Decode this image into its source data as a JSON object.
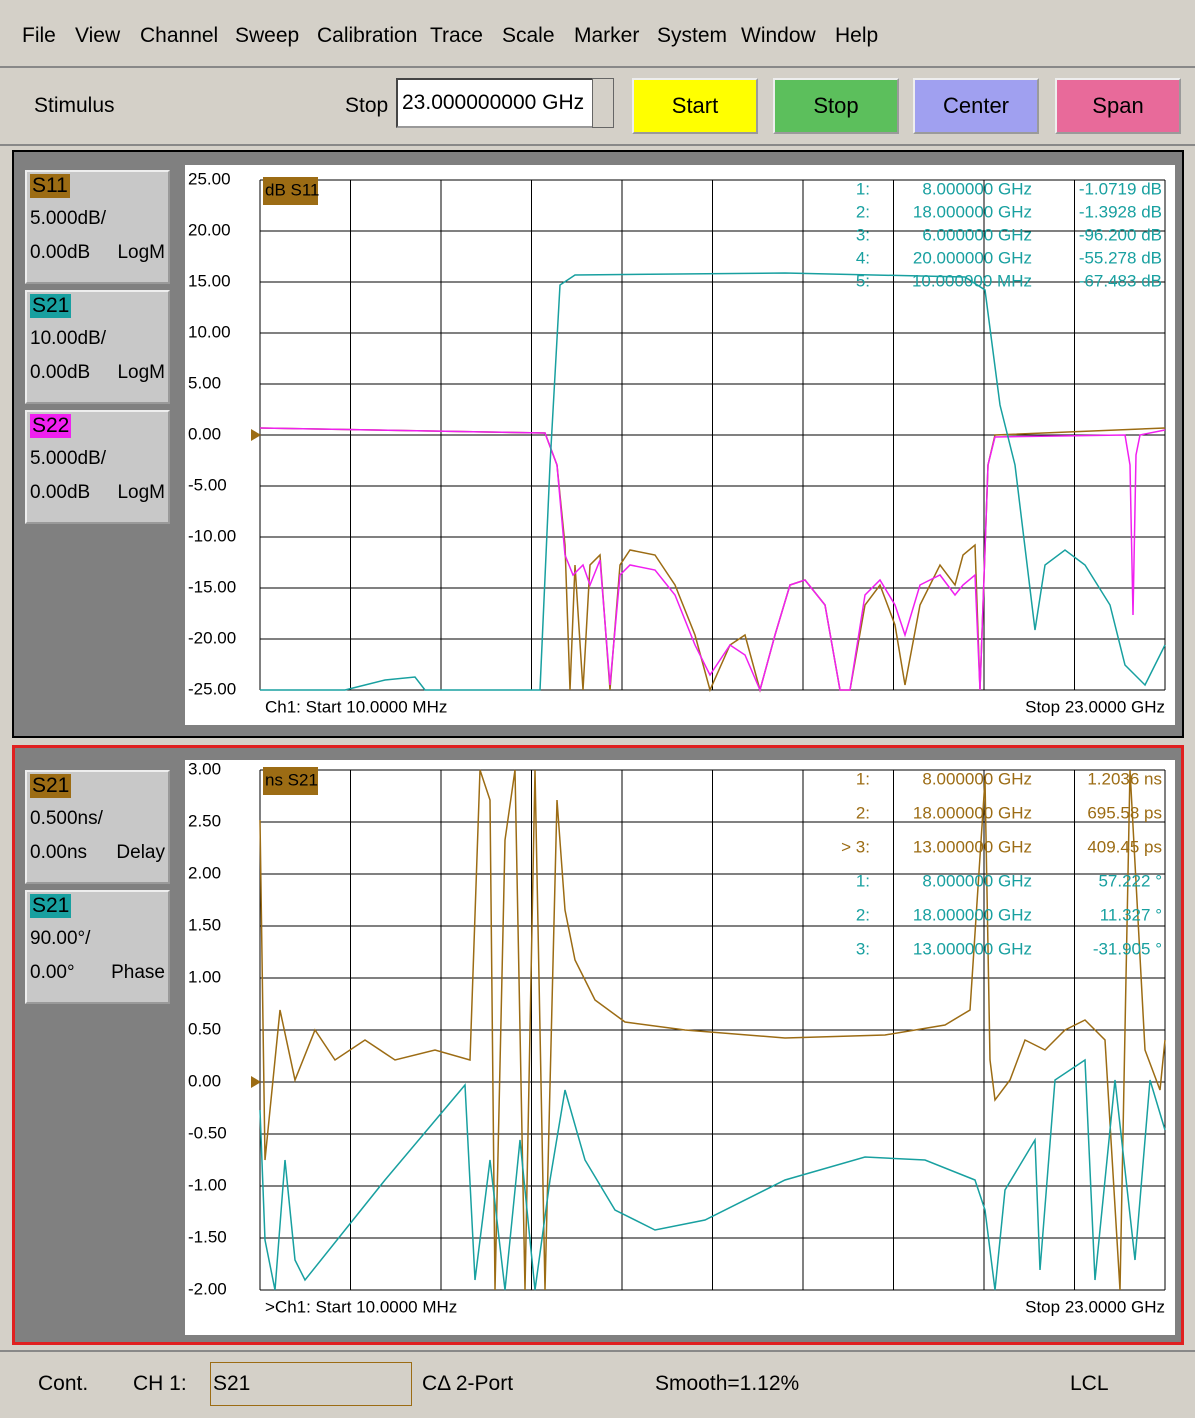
{
  "menu": [
    "File",
    "View",
    "Channel",
    "Sweep",
    "Calibration",
    "Trace",
    "Scale",
    "Marker",
    "System",
    "Window",
    "Help"
  ],
  "toolbar": {
    "group": "Stimulus",
    "field_label": "Stop",
    "field_value": "23.000000000 GHz",
    "buttons": [
      {
        "label": "Start",
        "color": "#ffff00"
      },
      {
        "label": "Stop",
        "color": "#5cbf5c"
      },
      {
        "label": "Center",
        "color": "#a0a0f0"
      },
      {
        "label": "Span",
        "color": "#e86a9a"
      }
    ]
  },
  "panels": [
    {
      "traces": [
        {
          "name": "S11",
          "color": "#9c6c14",
          "scale": "5.000dB/",
          "reference": "0.00dB",
          "format": "LogM"
        },
        {
          "name": "S21",
          "color": "#18a0a0",
          "scale": "10.00dB/",
          "reference": "0.00dB",
          "format": "LogM"
        },
        {
          "name": "S22",
          "color": "#f020f0",
          "scale": "5.000dB/",
          "reference": "0.00dB",
          "format": "LogM"
        }
      ],
      "tag": "dB S11",
      "tag_color": "#9c6c14",
      "yticks": [
        "25.00",
        "20.00",
        "15.00",
        "10.00",
        "5.00",
        "0.00",
        "-5.00",
        "-10.00",
        "-15.00",
        "-20.00",
        "-25.00"
      ],
      "markers": [
        {
          "id": "1:",
          "stimulus": "8.000000 GHz",
          "response": "-1.0719 dB",
          "color": "#18a0a0"
        },
        {
          "id": "2:",
          "stimulus": "18.000000 GHz",
          "response": "-1.3928 dB",
          "color": "#18a0a0"
        },
        {
          "id": "3:",
          "stimulus": "6.000000 GHz",
          "response": "-96.200 dB",
          "color": "#18a0a0"
        },
        {
          "id": "4:",
          "stimulus": "20.000000 GHz",
          "response": "-55.278 dB",
          "color": "#18a0a0"
        },
        {
          "id": "5:",
          "stimulus": "10.000000 MHz",
          "response": "-67.483 dB",
          "color": "#18a0a0"
        }
      ],
      "start": "Ch1: Start  10.0000 MHz",
      "stop": "Stop  23.0000 GHz"
    },
    {
      "traces": [
        {
          "name": "S21",
          "color": "#9c6c14",
          "scale": "0.500ns/",
          "reference": "0.00ns",
          "format": "Delay"
        },
        {
          "name": "S21",
          "color": "#18a0a0",
          "scale": "90.00°/",
          "reference": "0.00°",
          "format": "Phase"
        }
      ],
      "tag": "ns S21",
      "tag_color": "#9c6c14",
      "yticks": [
        "3.00",
        "2.50",
        "2.00",
        "1.50",
        "1.00",
        "0.50",
        "0.00",
        "-0.50",
        "-1.00",
        "-1.50",
        "-2.00"
      ],
      "markers": [
        {
          "id": "1:",
          "stimulus": "8.000000 GHz",
          "response": "1.2036 ns",
          "color": "#9c6c14"
        },
        {
          "id": "2:",
          "stimulus": "18.000000 GHz",
          "response": "695.58 ps",
          "color": "#9c6c14"
        },
        {
          "id": "> 3:",
          "stimulus": "13.000000 GHz",
          "response": "409.45 ps",
          "color": "#9c6c14"
        },
        {
          "id": "1:",
          "stimulus": "8.000000 GHz",
          "response": "57.222 °",
          "color": "#18a0a0"
        },
        {
          "id": "2:",
          "stimulus": "18.000000 GHz",
          "response": "11.327 °",
          "color": "#18a0a0"
        },
        {
          "id": "3:",
          "stimulus": "13.000000 GHz",
          "response": "-31.905 °",
          "color": "#18a0a0"
        }
      ],
      "start": ">Ch1: Start  10.0000 MHz",
      "stop": "Stop  23.0000 GHz"
    }
  ],
  "status": {
    "mode": "Cont.",
    "channel": "CH 1:",
    "parameter": "S21",
    "calibration": "CΔ 2-Port",
    "smoothing": "Smooth=1.12%",
    "remote": "LCL"
  }
}
